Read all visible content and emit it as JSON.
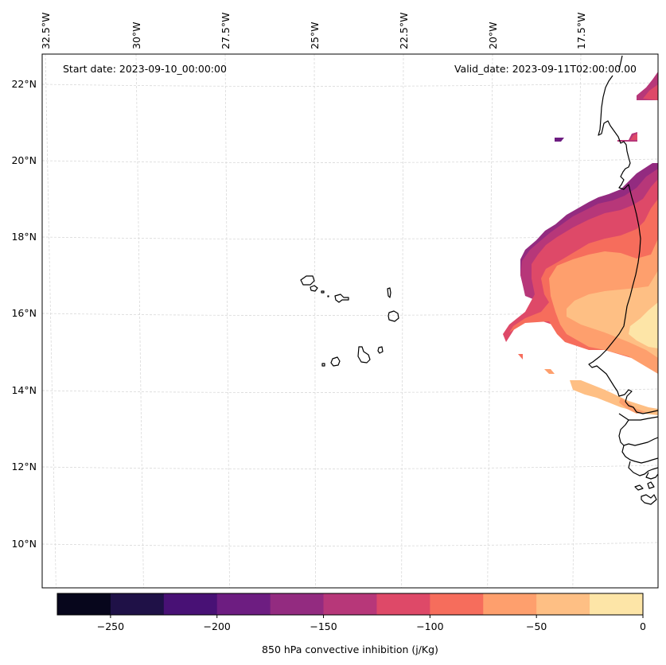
{
  "chart_data": {
    "type": "heatmap",
    "title": "",
    "annotations": {
      "start_date": "Start date: 2023-09-10_00:00:00",
      "valid_date": "Valid_date: 2023-09-11T02:00:00.00"
    },
    "longitude_ticks": [
      "32.5°W",
      "30°W",
      "27.5°W",
      "25°W",
      "22.5°W",
      "20°W",
      "17.5°W"
    ],
    "latitude_ticks": [
      "22°N",
      "20°N",
      "18°N",
      "16°N",
      "14°N",
      "12°N",
      "10°N"
    ],
    "extent": {
      "lon": [
        -33,
        -16.6
      ],
      "lat": [
        8.9,
        22.8
      ]
    },
    "gridlines": true,
    "colorbar": {
      "label": "850 hPa convective inhibition (j/Kg)",
      "orientation": "horizontal",
      "placement": "bottom",
      "range": [
        -275,
        0
      ],
      "levels": [
        -275,
        -250,
        -225,
        -200,
        -175,
        -150,
        -125,
        -100,
        -75,
        -50,
        -25,
        0
      ],
      "tick_labels": [
        "−250",
        "−200",
        "−150",
        "−100",
        "−50",
        "0"
      ],
      "tick_values": [
        -250,
        -200,
        -150,
        -100,
        -50,
        0
      ],
      "colors": [
        "#07061c",
        "#1f1147",
        "#481175",
        "#6d1d81",
        "#932b80",
        "#b73779",
        "#de4968",
        "#f66d5c",
        "#fe9f6d",
        "#febf84",
        "#fde5a7"
      ]
    },
    "regions_described": [
      {
        "area": "West African coast / Mauritania-Senegal (~15-20°N, 16.6-19.5°W)",
        "value_range": [
          -150,
          0
        ],
        "peak": "near 0 around 15.5°N, 16.6°W"
      },
      {
        "area": "Band south of Senegal (~13.5-14°N)",
        "value_range": [
          -75,
          -25
        ]
      },
      {
        "area": "Isolated patches ~21-22.5°N near coast",
        "value_range": [
          -175,
          -125
        ]
      }
    ],
    "geography": [
      "Cape Verde islands",
      "West African coastline (Mauritania, Senegal, Gambia, Guinea-Bissau)"
    ]
  }
}
